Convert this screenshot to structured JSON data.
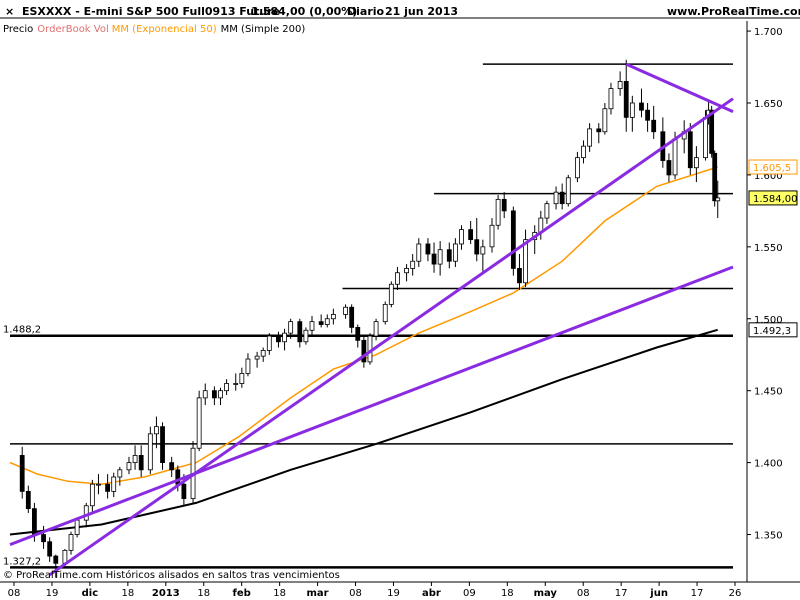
{
  "header": {
    "close_symbol": "×",
    "instrument": "ESXXXX - E-mini S&P 500 Full0913 Future",
    "last_info": "1.584,00 (0,00%)",
    "period": "Diario",
    "date": "21 jun 2013",
    "source": "www.ProRealTime.com"
  },
  "legend": {
    "price_label": "Precio",
    "orderbook_label": "OrderBook Vol",
    "mm50_label": "MM (Exponencial 50)",
    "mm200_label": "MM (Simple 200)"
  },
  "footer": {
    "credit": "© ProRealTime.com  Históricos alisados en saltos tras vencimientos"
  },
  "colors": {
    "purple": "#8a2be2",
    "orange": "#ff9900",
    "black": "#000000",
    "orderbook": "#e07070",
    "axis_text": "#000000"
  },
  "chart_data": {
    "type": "candlestick",
    "y_axis": {
      "range": [
        1317,
        1707
      ],
      "ticks": [
        1350,
        1400,
        1450,
        1500,
        1550,
        1600,
        1650,
        1700
      ],
      "tick_labels": [
        "1.350",
        "1.400",
        "1.450",
        "1.500",
        "1.550",
        "1.600",
        "1.650",
        "1.700"
      ],
      "value_badges": [
        {
          "label": "1.605,5",
          "value": 1605.5,
          "series": "MM (Exponencial 50)"
        },
        {
          "label": "1.584,00",
          "value": 1584.0,
          "series": "Precio"
        },
        {
          "label": "1.492,3",
          "value": 1492.3,
          "series": "MM (Simple 200)"
        }
      ]
    },
    "x_axis": {
      "tick_labels": [
        "08",
        "19",
        "dic",
        "18",
        "2013",
        "18",
        "feb",
        "18",
        "mar",
        "08",
        "19",
        "abr",
        "09",
        "18",
        "may",
        "08",
        "17",
        "jun",
        "17",
        "26"
      ],
      "date_range": [
        "2012-11-01",
        "2013-06-26"
      ]
    },
    "candles": [
      [
        "2012-11-05",
        1405,
        1411,
        1375,
        1380
      ],
      [
        "2012-11-07",
        1380,
        1384,
        1365,
        1368
      ],
      [
        "2012-11-09",
        1368,
        1372,
        1345,
        1350
      ],
      [
        "2012-11-12",
        1350,
        1356,
        1340,
        1345
      ],
      [
        "2012-11-14",
        1345,
        1348,
        1331,
        1335
      ],
      [
        "2012-11-16",
        1335,
        1336,
        1320,
        1330
      ],
      [
        "2012-11-19",
        1330,
        1340,
        1328,
        1339
      ],
      [
        "2012-11-21",
        1339,
        1352,
        1336,
        1350
      ],
      [
        "2012-11-23",
        1350,
        1362,
        1348,
        1360
      ],
      [
        "2012-11-26",
        1360,
        1372,
        1355,
        1370
      ],
      [
        "2012-11-28",
        1370,
        1388,
        1366,
        1385
      ],
      [
        "2012-11-30",
        1385,
        1392,
        1378,
        1385
      ],
      [
        "2012-12-03",
        1385,
        1392,
        1375,
        1380
      ],
      [
        "2012-12-05",
        1380,
        1393,
        1376,
        1390
      ],
      [
        "2012-12-07",
        1390,
        1397,
        1384,
        1395
      ],
      [
        "2012-12-10",
        1395,
        1404,
        1392,
        1400
      ],
      [
        "2012-12-12",
        1400,
        1412,
        1395,
        1405
      ],
      [
        "2012-12-14",
        1405,
        1412,
        1390,
        1395
      ],
      [
        "2012-12-17",
        1395,
        1425,
        1392,
        1420
      ],
      [
        "2012-12-19",
        1420,
        1432,
        1410,
        1425
      ],
      [
        "2012-12-21",
        1425,
        1428,
        1395,
        1400
      ],
      [
        "2012-12-24",
        1400,
        1404,
        1390,
        1395
      ],
      [
        "2012-12-26",
        1395,
        1398,
        1380,
        1385
      ],
      [
        "2012-12-28",
        1385,
        1392,
        1370,
        1375
      ],
      [
        "2012-12-31",
        1375,
        1415,
        1372,
        1410
      ],
      [
        "2013-01-02",
        1410,
        1450,
        1408,
        1445
      ],
      [
        "2013-01-04",
        1445,
        1455,
        1440,
        1450
      ],
      [
        "2013-01-07",
        1450,
        1453,
        1440,
        1445
      ],
      [
        "2013-01-09",
        1445,
        1452,
        1440,
        1450
      ],
      [
        "2013-01-11",
        1450,
        1458,
        1447,
        1455
      ],
      [
        "2013-01-14",
        1455,
        1462,
        1450,
        1455
      ],
      [
        "2013-01-16",
        1455,
        1466,
        1452,
        1462
      ],
      [
        "2013-01-18",
        1462,
        1476,
        1460,
        1472
      ],
      [
        "2013-01-21",
        1472,
        1477,
        1466,
        1474
      ],
      [
        "2013-01-23",
        1474,
        1480,
        1470,
        1478
      ],
      [
        "2013-01-25",
        1478,
        1490,
        1475,
        1488
      ],
      [
        "2013-01-28",
        1488,
        1491,
        1480,
        1484
      ],
      [
        "2013-01-30",
        1484,
        1493,
        1478,
        1490
      ],
      [
        "2013-02-01",
        1490,
        1500,
        1486,
        1498
      ],
      [
        "2013-02-04",
        1498,
        1500,
        1480,
        1484
      ],
      [
        "2013-02-06",
        1484,
        1494,
        1482,
        1492
      ],
      [
        "2013-02-08",
        1492,
        1502,
        1488,
        1498
      ],
      [
        "2013-02-11",
        1498,
        1503,
        1494,
        1496
      ],
      [
        "2013-02-13",
        1496,
        1503,
        1494,
        1500
      ],
      [
        "2013-02-15",
        1500,
        1507,
        1496,
        1503
      ],
      [
        "2013-02-19",
        1503,
        1510,
        1500,
        1508
      ],
      [
        "2013-02-21",
        1508,
        1510,
        1490,
        1494
      ],
      [
        "2013-02-23",
        1494,
        1496,
        1480,
        1485
      ],
      [
        "2013-02-25",
        1485,
        1488,
        1466,
        1470
      ],
      [
        "2013-02-27",
        1470,
        1490,
        1468,
        1488
      ],
      [
        "2013-03-01",
        1488,
        1500,
        1485,
        1498
      ],
      [
        "2013-03-04",
        1498,
        1512,
        1496,
        1510
      ],
      [
        "2013-03-06",
        1510,
        1526,
        1508,
        1524
      ],
      [
        "2013-03-08",
        1524,
        1536,
        1520,
        1532
      ],
      [
        "2013-03-11",
        1532,
        1538,
        1526,
        1535
      ],
      [
        "2013-03-13",
        1535,
        1545,
        1530,
        1540
      ],
      [
        "2013-03-15",
        1540,
        1556,
        1536,
        1552
      ],
      [
        "2013-03-18",
        1552,
        1556,
        1540,
        1545
      ],
      [
        "2013-03-20",
        1545,
        1553,
        1532,
        1538
      ],
      [
        "2013-03-22",
        1538,
        1554,
        1530,
        1548
      ],
      [
        "2013-03-25",
        1548,
        1553,
        1535,
        1540
      ],
      [
        "2013-03-27",
        1540,
        1556,
        1536,
        1552
      ],
      [
        "2013-03-29",
        1552,
        1565,
        1548,
        1562
      ],
      [
        "2013-04-01",
        1562,
        1568,
        1552,
        1555
      ],
      [
        "2013-04-03",
        1555,
        1570,
        1540,
        1545
      ],
      [
        "2013-04-05",
        1545,
        1555,
        1532,
        1550
      ],
      [
        "2013-04-08",
        1550,
        1570,
        1546,
        1565
      ],
      [
        "2013-04-10",
        1565,
        1586,
        1562,
        1583
      ],
      [
        "2013-04-12",
        1583,
        1588,
        1570,
        1575
      ],
      [
        "2013-04-15",
        1575,
        1578,
        1530,
        1535
      ],
      [
        "2013-04-17",
        1535,
        1545,
        1520,
        1525
      ],
      [
        "2013-04-19",
        1525,
        1562,
        1522,
        1555
      ],
      [
        "2013-04-22",
        1555,
        1565,
        1545,
        1560
      ],
      [
        "2013-04-24",
        1560,
        1575,
        1555,
        1570
      ],
      [
        "2013-04-26",
        1570,
        1582,
        1566,
        1580
      ],
      [
        "2013-04-29",
        1580,
        1592,
        1576,
        1588
      ],
      [
        "2013-05-01",
        1588,
        1594,
        1576,
        1580
      ],
      [
        "2013-05-03",
        1580,
        1600,
        1578,
        1598
      ],
      [
        "2013-05-06",
        1598,
        1616,
        1595,
        1612
      ],
      [
        "2013-05-08",
        1612,
        1624,
        1608,
        1620
      ],
      [
        "2013-05-10",
        1620,
        1636,
        1616,
        1632
      ],
      [
        "2013-05-13",
        1632,
        1636,
        1622,
        1630
      ],
      [
        "2013-05-15",
        1630,
        1650,
        1628,
        1646
      ],
      [
        "2013-05-17",
        1646,
        1664,
        1642,
        1660
      ],
      [
        "2013-05-20",
        1660,
        1672,
        1655,
        1665
      ],
      [
        "2013-05-22",
        1665,
        1680,
        1630,
        1640
      ],
      [
        "2013-05-24",
        1640,
        1655,
        1630,
        1650
      ],
      [
        "2013-05-27",
        1650,
        1660,
        1640,
        1645
      ],
      [
        "2013-05-29",
        1645,
        1650,
        1630,
        1638
      ],
      [
        "2013-05-31",
        1638,
        1648,
        1625,
        1630
      ],
      [
        "2013-06-03",
        1630,
        1640,
        1605,
        1610
      ],
      [
        "2013-06-05",
        1610,
        1615,
        1595,
        1600
      ],
      [
        "2013-06-07",
        1600,
        1630,
        1597,
        1625
      ],
      [
        "2013-06-10",
        1625,
        1638,
        1615,
        1630
      ],
      [
        "2013-06-12",
        1630,
        1636,
        1600,
        1605
      ],
      [
        "2013-06-14",
        1605,
        1620,
        1595,
        1612
      ],
      [
        "2013-06-17",
        1612,
        1645,
        1610,
        1640
      ],
      [
        "2013-06-18",
        1640,
        1652,
        1635,
        1645
      ],
      [
        "2013-06-19",
        1645,
        1648,
        1612,
        1615
      ],
      [
        "2013-06-20",
        1615,
        1617,
        1578,
        1582
      ],
      [
        "2013-06-21",
        1582,
        1596,
        1570,
        1584
      ]
    ],
    "mm50_points": [
      [
        "2012-11-01",
        1400
      ],
      [
        "2012-11-10",
        1392
      ],
      [
        "2012-11-20",
        1387
      ],
      [
        "2012-12-01",
        1385
      ],
      [
        "2012-12-15",
        1390
      ],
      [
        "2013-01-01",
        1400
      ],
      [
        "2013-01-15",
        1418
      ],
      [
        "2013-02-01",
        1445
      ],
      [
        "2013-02-15",
        1465
      ],
      [
        "2013-03-01",
        1475
      ],
      [
        "2013-03-15",
        1490
      ],
      [
        "2013-04-01",
        1505
      ],
      [
        "2013-04-15",
        1518
      ],
      [
        "2013-05-01",
        1540
      ],
      [
        "2013-05-15",
        1568
      ],
      [
        "2013-06-01",
        1592
      ],
      [
        "2013-06-21",
        1605.5
      ]
    ],
    "mm200_points": [
      [
        "2012-11-01",
        1350
      ],
      [
        "2012-12-01",
        1357
      ],
      [
        "2013-01-01",
        1372
      ],
      [
        "2013-02-01",
        1395
      ],
      [
        "2013-03-01",
        1413
      ],
      [
        "2013-04-01",
        1435
      ],
      [
        "2013-05-01",
        1458
      ],
      [
        "2013-06-01",
        1480
      ],
      [
        "2013-06-21",
        1492.3
      ]
    ],
    "horizontal_levels": [
      {
        "value": 1677,
        "from": "2013-04-05",
        "to": "2013-06-26"
      },
      {
        "value": 1587,
        "from": "2013-03-20",
        "to": "2013-06-26"
      },
      {
        "value": 1521,
        "from": "2013-02-18",
        "to": "2013-06-26"
      },
      {
        "value": 1488.2,
        "from": "2012-11-01",
        "to": "2013-06-26",
        "label": "1.488,2"
      },
      {
        "value": 1413,
        "from": "2012-11-01",
        "to": "2013-06-26"
      },
      {
        "value": 1327.2,
        "from": "2012-11-01",
        "to": "2013-06-26",
        "label": "1.327,2"
      }
    ],
    "trend_lines": [
      {
        "from": [
          "2012-11-14",
          1322
        ],
        "to": [
          "2013-06-26",
          1653
        ]
      },
      {
        "from": [
          "2012-11-01",
          1343
        ],
        "to": [
          "2013-06-26",
          1536
        ]
      },
      {
        "from": [
          "2013-05-22",
          1677
        ],
        "to": [
          "2013-06-26",
          1644
        ]
      }
    ],
    "grid": false,
    "legend_position": "top-left"
  }
}
